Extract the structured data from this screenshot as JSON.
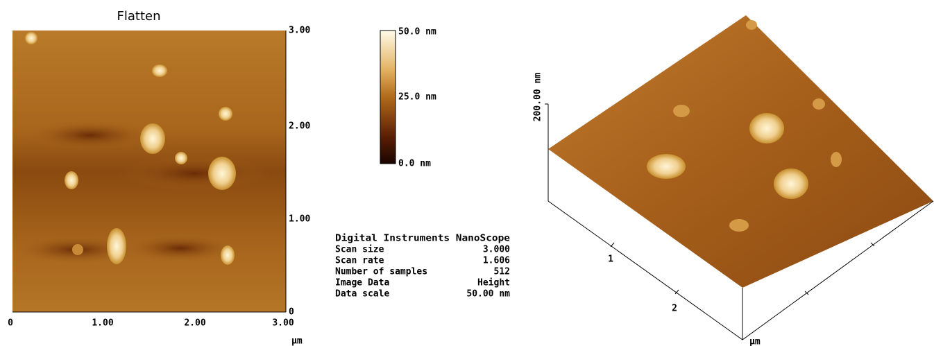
{
  "left_image": {
    "title": "Flatten",
    "y_ticks": [
      "3.00",
      "2.00",
      "1.00",
      "0"
    ],
    "x_ticks": [
      "0",
      "1.00",
      "2.00",
      "3.00"
    ],
    "unit": "µm"
  },
  "color_scale": {
    "labels": [
      "50.0 nm",
      "25.0 nm",
      "0.0 nm"
    ]
  },
  "info": {
    "header": "Digital Instruments NanoScope",
    "rows": [
      [
        "Scan size",
        "3.000"
      ],
      [
        "Scan rate",
        "1.606"
      ],
      [
        "Number of samples",
        "512"
      ],
      [
        "Image Data",
        "Height"
      ],
      [
        "Data scale",
        "50.00 nm"
      ]
    ]
  },
  "surface_view": {
    "z_label": "200.00 nm",
    "ticks": [
      "1",
      "2"
    ],
    "unit": "µm"
  }
}
